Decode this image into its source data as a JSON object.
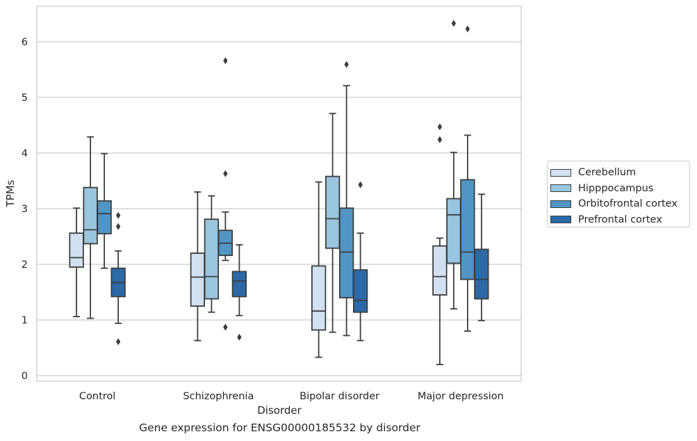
{
  "caption": "Gene expression for ENSG00000185532 by disorder",
  "chart_data": {
    "type": "box",
    "title": "",
    "xlabel": "Disorder",
    "ylabel": "TPMs",
    "ylim": [
      -0.1,
      6.65
    ],
    "yticks": [
      0,
      1,
      2,
      3,
      4,
      5,
      6
    ],
    "grid": "horizontal",
    "legend_position": "right",
    "categories": [
      "Control",
      "Schizophrenia",
      "Bipolar disorder",
      "Major depression"
    ],
    "series": [
      {
        "name": "Cerebellum",
        "color": "#d1e1f1",
        "boxes": [
          {
            "whislo": 1.06,
            "q1": 1.95,
            "med": 2.12,
            "q3": 2.56,
            "whishi": 3.01,
            "fliers": []
          },
          {
            "whislo": 0.63,
            "q1": 1.25,
            "med": 1.77,
            "q3": 2.2,
            "whishi": 3.3,
            "fliers": []
          },
          {
            "whislo": 0.33,
            "q1": 0.82,
            "med": 1.16,
            "q3": 1.97,
            "whishi": 3.48,
            "fliers": []
          },
          {
            "whislo": 0.2,
            "q1": 1.45,
            "med": 1.78,
            "q3": 2.33,
            "whishi": 2.47,
            "fliers": [
              4.24,
              4.47
            ]
          }
        ]
      },
      {
        "name": "Hipppocampus",
        "color": "#9ac5df",
        "boxes": [
          {
            "whislo": 1.03,
            "q1": 2.37,
            "med": 2.62,
            "q3": 3.38,
            "whishi": 4.29,
            "fliers": []
          },
          {
            "whislo": 1.14,
            "q1": 1.38,
            "med": 1.78,
            "q3": 2.81,
            "whishi": 3.23,
            "fliers": []
          },
          {
            "whislo": 0.78,
            "q1": 2.29,
            "med": 2.82,
            "q3": 3.58,
            "whishi": 4.71,
            "fliers": []
          },
          {
            "whislo": 1.2,
            "q1": 2.02,
            "med": 2.89,
            "q3": 3.18,
            "whishi": 4.01,
            "fliers": [
              6.33
            ]
          }
        ]
      },
      {
        "name": "Orbitofrontal cortex",
        "color": "#5195c4",
        "boxes": [
          {
            "whislo": 1.93,
            "q1": 2.55,
            "med": 2.91,
            "q3": 3.14,
            "whishi": 3.99,
            "fliers": []
          },
          {
            "whislo": 2.07,
            "q1": 2.16,
            "med": 2.38,
            "q3": 2.61,
            "whishi": 2.94,
            "fliers": [
              0.87,
              3.63,
              5.66
            ]
          },
          {
            "whislo": 0.72,
            "q1": 1.4,
            "med": 2.22,
            "q3": 3.01,
            "whishi": 5.21,
            "fliers": [
              5.59
            ]
          },
          {
            "whislo": 0.8,
            "q1": 1.73,
            "med": 2.22,
            "q3": 3.52,
            "whishi": 4.32,
            "fliers": [
              6.23
            ]
          }
        ]
      },
      {
        "name": "Prefrontal cortex",
        "color": "#2c69a6",
        "boxes": [
          {
            "whislo": 0.94,
            "q1": 1.42,
            "med": 1.67,
            "q3": 1.93,
            "whishi": 2.24,
            "fliers": [
              0.61,
              2.68,
              2.88
            ]
          },
          {
            "whislo": 1.08,
            "q1": 1.42,
            "med": 1.7,
            "q3": 1.87,
            "whishi": 2.35,
            "fliers": [
              0.69
            ]
          },
          {
            "whislo": 0.63,
            "q1": 1.14,
            "med": 1.35,
            "q3": 1.9,
            "whishi": 2.56,
            "fliers": [
              3.43
            ]
          },
          {
            "whislo": 0.99,
            "q1": 1.38,
            "med": 1.73,
            "q3": 2.27,
            "whishi": 3.26,
            "fliers": []
          }
        ]
      }
    ]
  }
}
